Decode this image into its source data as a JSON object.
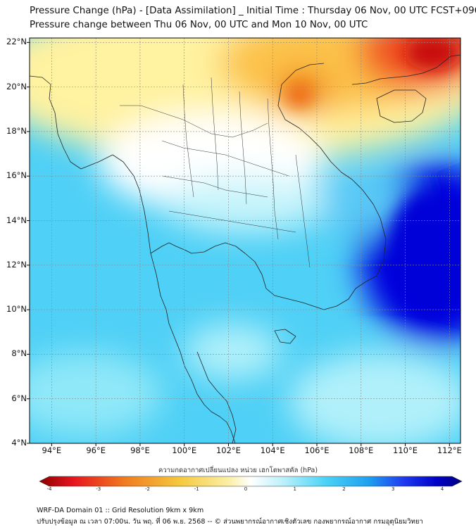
{
  "header": {
    "line1": "Pressure Change (hPa) - [Data Assimilation] _ Initial Time : Thursday 06 Nov, 00 UTC FCST+096",
    "line2": "Pressure change between Thu 06 Nov, 00 UTC and Mon 10 Nov, 00 UTC"
  },
  "map": {
    "lat_ticks": [
      "22°N",
      "20°N",
      "18°N",
      "16°N",
      "14°N",
      "12°N",
      "10°N",
      "8°N",
      "6°N",
      "4°N"
    ],
    "lon_ticks": [
      "94°E",
      "96°E",
      "98°E",
      "100°E",
      "102°E",
      "104°E",
      "106°E",
      "108°E",
      "110°E",
      "112°E"
    ],
    "extent": {
      "lon_min": 93,
      "lon_max": 112.5,
      "lat_min": 4,
      "lat_max": 22.2
    },
    "field_colors": {
      "strong_fall": "#8b0000",
      "fall": "#f08a1a",
      "slight_fall": "#ffe680",
      "neutral": "#ffffff",
      "slight_rise": "#8fe8f8",
      "rise": "#39c8f4",
      "strong_rise": "#0000e0"
    }
  },
  "colorbar": {
    "title": "ความกดอากาศเปลี่ยนแปลง หน่วย เฮกโตพาสคัล (hPa)",
    "ticks": [
      "-4",
      "-3",
      "-2",
      "-1",
      "0",
      "1",
      "2",
      "3",
      "4"
    ],
    "colors": [
      "#8b0000",
      "#e8141e",
      "#f07a1e",
      "#f5c83c",
      "#fbf0a8",
      "#ffffff",
      "#b8f0fa",
      "#48d2f6",
      "#1ea0f0",
      "#1e3cf0",
      "#0000c8",
      "#000080"
    ]
  },
  "footer": {
    "line1": "WRF-DA Domain 01 :: Grid Resolution 9km x 9km",
    "line2": "ปรับปรุงข้อมูล ณ เวลา 07:00น. วัน พฤ. ที่ 06 พ.ย. 2568 -- © ส่วนพยากรณ์อากาศเชิงตัวเลข กองพยากรณ์อากาศ กรมอุตุนิยมวิทยา"
  }
}
